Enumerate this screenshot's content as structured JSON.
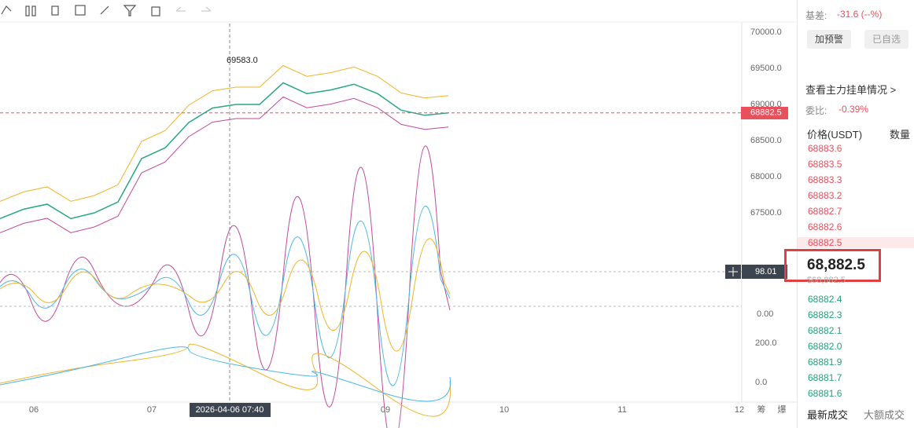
{
  "toolbar": {},
  "chart": {
    "price_axis": {
      "ylim": [
        67000,
        70000
      ],
      "ticks": [
        {
          "value": 70000,
          "label": "70000.0"
        },
        {
          "value": 69500,
          "label": "69500.0"
        },
        {
          "value": 69000,
          "label": "69000.0"
        },
        {
          "value": 68500,
          "label": "68500.0"
        },
        {
          "value": 68000,
          "label": "68000.0"
        },
        {
          "value": 67500,
          "label": "67500.0"
        }
      ]
    },
    "close_prices": [
      67420,
      67550,
      67620,
      67420,
      67500,
      67650,
      68250,
      68400,
      68750,
      68950,
      69000,
      69000,
      69300,
      69150,
      69200,
      69280,
      69150,
      68920,
      68850,
      68882.5
    ],
    "high_label": "69583.0",
    "current_price": {
      "value": 68882.5,
      "label": "68882.5"
    },
    "indicator_value": "98.01",
    "indicator_zero": "0.00",
    "macd_ticks": [
      "200.0",
      "0.0"
    ],
    "dates": [
      "06",
      "07",
      "09",
      "10",
      "11",
      "12"
    ],
    "crosshair_time": "2026-04-06 07:40",
    "side_tabs": [
      "筹",
      "爆"
    ]
  },
  "side_panel": {
    "basis": "基差:",
    "basis_value": "-31.6 (--%)",
    "buttons": [
      "加预警",
      "已自选"
    ],
    "orders_link": "查看主力挂单情况 >",
    "ratio_label": "委比:",
    "ratio_value": "-0.39%",
    "headers": [
      "价格(USDT)",
      "数量"
    ],
    "asks": [
      "68883.6",
      "68883.5",
      "68883.3",
      "68883.2",
      "68882.7",
      "68882.6",
      "68882.5"
    ],
    "last_price": "68,882.5",
    "last_price_usd": "$68,882.5",
    "bids": [
      "68882.4",
      "68882.3",
      "68882.1",
      "68882.0",
      "68881.9",
      "68881.7",
      "68881.6"
    ],
    "tabs": [
      "最新成交",
      "大额成交"
    ]
  }
}
